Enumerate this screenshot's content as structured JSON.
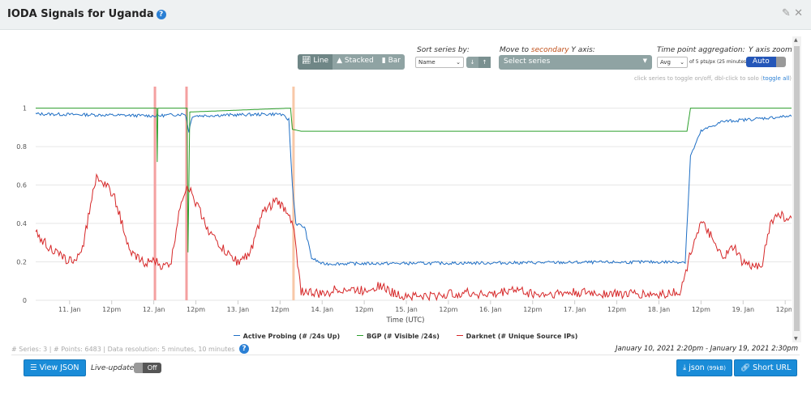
{
  "header": {
    "title": "IODA Signals for Uganda",
    "help_icon": "question-circle-icon",
    "edit_icon": "edit-icon",
    "close_icon": "close-icon"
  },
  "controls": {
    "chart_types": [
      {
        "label": "Line",
        "icon": "line-chart-icon",
        "active": true
      },
      {
        "label": "Stacked",
        "icon": "area-chart-icon",
        "active": false
      },
      {
        "label": "Bar",
        "icon": "bar-chart-icon",
        "active": false
      }
    ],
    "sort_label": "Sort series by:",
    "sort_value": "Name",
    "sort_down": "↓",
    "sort_up": "↑",
    "secondary_label_pre": "Move to ",
    "secondary_label_hl": "secondary",
    "secondary_label_post": " Y axis:",
    "secondary_value": "Select series",
    "aggregation_label": "Time point aggregation:",
    "aggregation_value": "Avg",
    "aggregation_note": "of 5 pts/px (25 minutes)",
    "yzoom_label": "Y axis zoom:",
    "yzoom_value": "Auto",
    "hint": "click series to toggle on/off, dbl-click to solo (",
    "hint_link": "toggle all",
    "hint_end": ")"
  },
  "chart_data": {
    "type": "line",
    "xlabel": "Time (UTC)",
    "ylabel": "",
    "xlim": [
      "2021-01-10T14:20",
      "2021-01-19T14:30"
    ],
    "ylim": [
      0,
      1.07
    ],
    "yticks": [
      0,
      0.2,
      0.4,
      0.6,
      0.8,
      1
    ],
    "ytick_labels": [
      "0",
      "0.2",
      "0.4",
      "0.6",
      "0.8",
      "1"
    ],
    "xticks": [
      [
        "2021-01-11T00:00",
        "11. Jan"
      ],
      [
        "2021-01-11T12:00",
        "12pm"
      ],
      [
        "2021-01-12T00:00",
        "12. Jan"
      ],
      [
        "2021-01-12T12:00",
        "12pm"
      ],
      [
        "2021-01-13T00:00",
        "13. Jan"
      ],
      [
        "2021-01-13T12:00",
        "12pm"
      ],
      [
        "2021-01-14T00:00",
        "14. Jan"
      ],
      [
        "2021-01-14T12:00",
        "12pm"
      ],
      [
        "2021-01-15T00:00",
        "15. Jan"
      ],
      [
        "2021-01-15T12:00",
        "12pm"
      ],
      [
        "2021-01-16T00:00",
        "16. Jan"
      ],
      [
        "2021-01-16T12:00",
        "12pm"
      ],
      [
        "2021-01-17T00:00",
        "17. Jan"
      ],
      [
        "2021-01-17T12:00",
        "12pm"
      ],
      [
        "2021-01-18T00:00",
        "18. Jan"
      ],
      [
        "2021-01-18T12:00",
        "12pm"
      ],
      [
        "2021-01-19T00:00",
        "19. Jan"
      ],
      [
        "2021-01-19T12:00",
        "12pm"
      ]
    ],
    "grid": true,
    "legend_placement": "bottom",
    "outage_bands": [
      {
        "time": "2021-01-12T00:20",
        "color": "#f4a0a0"
      },
      {
        "time": "2021-01-12T09:20",
        "color": "#f4a0a0"
      },
      {
        "time": "2021-01-13T15:50",
        "color": "#f8c8a8"
      }
    ],
    "series": [
      {
        "name": "Active Probing (# /24s Up)",
        "color": "#1f6fc5",
        "noise": 0.008,
        "points": [
          [
            "2021-01-10T14:20",
            0.97
          ],
          [
            "2021-01-12T01:00",
            0.96
          ],
          [
            "2021-01-12T09:00",
            0.97
          ],
          [
            "2021-01-12T10:00",
            0.88
          ],
          [
            "2021-01-12T11:00",
            0.96
          ],
          [
            "2021-01-13T12:00",
            0.97
          ],
          [
            "2021-01-13T14:30",
            0.94
          ],
          [
            "2021-01-13T15:30",
            0.6
          ],
          [
            "2021-01-13T16:30",
            0.4
          ],
          [
            "2021-01-13T19:00",
            0.38
          ],
          [
            "2021-01-13T21:00",
            0.22
          ],
          [
            "2021-01-14T00:00",
            0.19
          ],
          [
            "2021-01-18T07:30",
            0.2
          ],
          [
            "2021-01-18T09:00",
            0.75
          ],
          [
            "2021-01-18T12:00",
            0.88
          ],
          [
            "2021-01-18T18:00",
            0.93
          ],
          [
            "2021-01-19T14:30",
            0.96
          ]
        ]
      },
      {
        "name": "BGP (# Visible /24s)",
        "color": "#2ca02c",
        "noise": 0,
        "points": [
          [
            "2021-01-10T14:20",
            1.0
          ],
          [
            "2021-01-12T00:50",
            1.0
          ],
          [
            "2021-01-12T01:00",
            0.72
          ],
          [
            "2021-01-12T01:10",
            1.0
          ],
          [
            "2021-01-12T09:30",
            1.0
          ],
          [
            "2021-01-12T09:45",
            0.25
          ],
          [
            "2021-01-12T10:00",
            0.6
          ],
          [
            "2021-01-12T10:15",
            0.98
          ],
          [
            "2021-01-13T15:00",
            1.0
          ],
          [
            "2021-01-13T15:30",
            0.89
          ],
          [
            "2021-01-13T18:00",
            0.88
          ],
          [
            "2021-01-18T08:00",
            0.88
          ],
          [
            "2021-01-18T09:00",
            1.0
          ],
          [
            "2021-01-19T14:30",
            1.0
          ]
        ]
      },
      {
        "name": "Darknet (# Unique Source IPs)",
        "color": "#d62728",
        "noise": 0.025,
        "points": [
          [
            "2021-01-10T14:20",
            0.35
          ],
          [
            "2021-01-10T18:00",
            0.28
          ],
          [
            "2021-01-10T22:00",
            0.22
          ],
          [
            "2021-01-11T02:00",
            0.2
          ],
          [
            "2021-01-11T04:00",
            0.3
          ],
          [
            "2021-01-11T07:00",
            0.6
          ],
          [
            "2021-01-11T08:00",
            0.65
          ],
          [
            "2021-01-11T12:30",
            0.55
          ],
          [
            "2021-01-11T15:00",
            0.4
          ],
          [
            "2021-01-11T17:00",
            0.25
          ],
          [
            "2021-01-11T21:00",
            0.2
          ],
          [
            "2021-01-12T00:30",
            0.2
          ],
          [
            "2021-01-12T02:45",
            0.17
          ],
          [
            "2021-01-12T05:00",
            0.2
          ],
          [
            "2021-01-12T07:30",
            0.5
          ],
          [
            "2021-01-12T09:30",
            0.6
          ],
          [
            "2021-01-12T12:15",
            0.5
          ],
          [
            "2021-01-12T16:00",
            0.35
          ],
          [
            "2021-01-12T20:30",
            0.25
          ],
          [
            "2021-01-13T00:00",
            0.2
          ],
          [
            "2021-01-13T03:30",
            0.25
          ],
          [
            "2021-01-13T07:00",
            0.45
          ],
          [
            "2021-01-13T10:45",
            0.52
          ],
          [
            "2021-01-13T14:45",
            0.45
          ],
          [
            "2021-01-13T16:00",
            0.35
          ],
          [
            "2021-01-13T18:00",
            0.05
          ],
          [
            "2021-01-13T23:45",
            0.03
          ],
          [
            "2021-01-14T04:30",
            0.06
          ],
          [
            "2021-01-14T11:30",
            0.05
          ],
          [
            "2021-01-14T16:15",
            0.08
          ],
          [
            "2021-01-14T21:00",
            0.03
          ],
          [
            "2021-01-15T06:30",
            0.02
          ],
          [
            "2021-01-15T16:00",
            0.04
          ],
          [
            "2021-01-16T01:30",
            0.03
          ],
          [
            "2021-01-16T06:15",
            0.06
          ],
          [
            "2021-01-16T13:15",
            0.03
          ],
          [
            "2021-01-17T00:00",
            0.04
          ],
          [
            "2021-01-18T00:00",
            0.03
          ],
          [
            "2021-01-18T06:20",
            0.05
          ],
          [
            "2021-01-18T09:45",
            0.3
          ],
          [
            "2021-01-18T12:00",
            0.4
          ],
          [
            "2021-01-18T14:25",
            0.35
          ],
          [
            "2021-01-18T16:45",
            0.25
          ],
          [
            "2021-01-18T19:00",
            0.23
          ],
          [
            "2021-01-18T21:25",
            0.28
          ],
          [
            "2021-01-18T23:40",
            0.2
          ],
          [
            "2021-01-19T03:00",
            0.17
          ],
          [
            "2021-01-19T05:30",
            0.2
          ],
          [
            "2021-01-19T07:45",
            0.4
          ],
          [
            "2021-01-19T10:00",
            0.45
          ],
          [
            "2021-01-19T13:30",
            0.42
          ],
          [
            "2021-01-19T14:30",
            0.45
          ]
        ]
      }
    ]
  },
  "footer": {
    "info": "# Series: 3 | # Points: 6483 | Data resolution: 5 minutes, 10 minutes",
    "range": "January 10, 2021 2:20pm - January 19, 2021 2:30pm",
    "view_json": "View JSON",
    "live_label": "Live-update:",
    "live_value": "Off",
    "json_download": "json",
    "json_size": "(99kB)",
    "short_url": "Short URL"
  }
}
